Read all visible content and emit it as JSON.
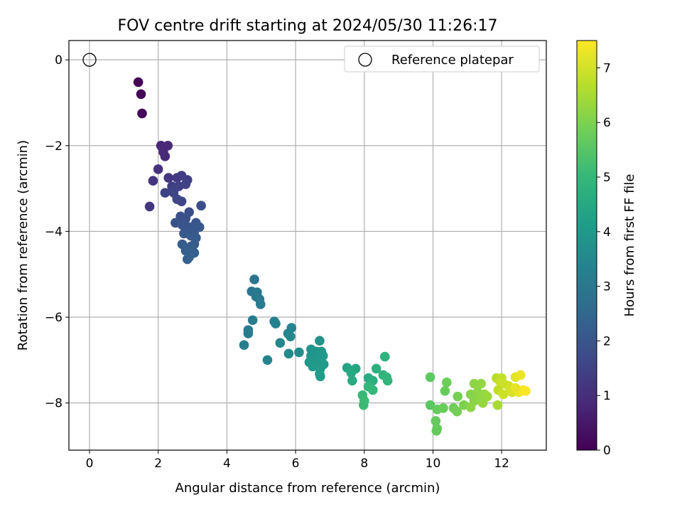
{
  "chart_data": {
    "type": "scatter",
    "title": "FOV centre drift starting at 2024/05/30 11:26:17",
    "xlabel": "Angular distance from reference (arcmin)",
    "ylabel": "Rotation from reference (arcmin)",
    "xlim": [
      -0.6,
      13.3
    ],
    "ylim": [
      -9.1,
      0.45
    ],
    "xticks": [
      0,
      2,
      4,
      6,
      8,
      10,
      12
    ],
    "yticks": [
      0,
      -2,
      -4,
      -6,
      -8
    ],
    "grid": true,
    "legend": {
      "placement": "top-right",
      "entries": [
        "Reference platepar"
      ]
    },
    "reference_point": {
      "x": 0,
      "y": 0
    },
    "colorbar": {
      "label": "Hours from first FF file",
      "range": [
        0,
        7.5
      ],
      "ticks": [
        0,
        1,
        2,
        3,
        4,
        5,
        6,
        7
      ],
      "colormap": "viridis",
      "stops": [
        "#440154",
        "#482878",
        "#3e4989",
        "#31688e",
        "#26828e",
        "#1f9e89",
        "#35b779",
        "#6ece58",
        "#b5de2b",
        "#fde725"
      ]
    },
    "points": [
      [
        1.42,
        -0.52,
        0.05
      ],
      [
        1.5,
        -0.8,
        0.1
      ],
      [
        1.53,
        -1.25,
        0.15
      ],
      [
        2.08,
        -2.0,
        0.8
      ],
      [
        2.28,
        -2.0,
        0.85
      ],
      [
        2.15,
        -2.15,
        0.9
      ],
      [
        2.2,
        -2.25,
        0.9
      ],
      [
        2.1,
        -2.02,
        0.85
      ],
      [
        2.0,
        -2.55,
        1.1
      ],
      [
        1.85,
        -2.82,
        1.15
      ],
      [
        2.3,
        -2.75,
        1.2
      ],
      [
        2.55,
        -2.75,
        1.3
      ],
      [
        2.68,
        -2.7,
        1.35
      ],
      [
        2.85,
        -2.8,
        1.4
      ],
      [
        2.4,
        -2.95,
        1.4
      ],
      [
        2.6,
        -2.95,
        1.45
      ],
      [
        2.8,
        -2.9,
        1.5
      ],
      [
        2.2,
        -3.1,
        1.5
      ],
      [
        2.45,
        -3.1,
        1.55
      ],
      [
        2.55,
        -3.25,
        1.6
      ],
      [
        2.68,
        -3.3,
        1.6
      ],
      [
        1.75,
        -3.42,
        1.2
      ],
      [
        3.25,
        -3.4,
        1.8
      ],
      [
        2.9,
        -3.55,
        1.8
      ],
      [
        2.65,
        -3.65,
        1.85
      ],
      [
        2.8,
        -3.7,
        1.9
      ],
      [
        2.5,
        -3.8,
        1.9
      ],
      [
        2.7,
        -3.85,
        1.95
      ],
      [
        2.9,
        -3.9,
        2.0
      ],
      [
        3.1,
        -3.8,
        2.0
      ],
      [
        3.2,
        -3.9,
        2.05
      ],
      [
        3.05,
        -4.0,
        2.05
      ],
      [
        2.75,
        -4.05,
        2.1
      ],
      [
        2.95,
        -4.1,
        2.1
      ],
      [
        3.1,
        -4.15,
        2.15
      ],
      [
        3.05,
        -4.3,
        2.15
      ],
      [
        2.7,
        -4.3,
        2.2
      ],
      [
        2.95,
        -4.35,
        2.2
      ],
      [
        2.8,
        -4.45,
        2.25
      ],
      [
        3.05,
        -4.5,
        2.25
      ],
      [
        2.9,
        -4.6,
        2.3
      ],
      [
        2.85,
        -4.65,
        2.3
      ],
      [
        4.8,
        -5.12,
        2.9
      ],
      [
        4.72,
        -5.4,
        2.95
      ],
      [
        4.88,
        -5.42,
        3.0
      ],
      [
        4.85,
        -5.52,
        3.0
      ],
      [
        4.95,
        -5.58,
        3.05
      ],
      [
        4.98,
        -5.7,
        3.1
      ],
      [
        4.75,
        -6.07,
        3.1
      ],
      [
        4.62,
        -6.3,
        3.15
      ],
      [
        4.62,
        -6.38,
        3.15
      ],
      [
        4.5,
        -6.65,
        3.2
      ],
      [
        5.38,
        -6.1,
        3.25
      ],
      [
        5.42,
        -6.15,
        3.3
      ],
      [
        5.88,
        -6.25,
        3.4
      ],
      [
        5.78,
        -6.38,
        3.45
      ],
      [
        5.85,
        -6.45,
        3.5
      ],
      [
        5.55,
        -6.6,
        3.45
      ],
      [
        5.18,
        -7.0,
        3.35
      ],
      [
        5.8,
        -6.85,
        3.55
      ],
      [
        6.1,
        -6.82,
        3.6
      ],
      [
        6.7,
        -6.55,
        3.8
      ],
      [
        6.45,
        -6.75,
        3.85
      ],
      [
        6.6,
        -6.8,
        3.9
      ],
      [
        6.75,
        -6.8,
        3.95
      ],
      [
        6.45,
        -6.9,
        3.9
      ],
      [
        6.55,
        -6.95,
        3.95
      ],
      [
        6.68,
        -6.98,
        4.0
      ],
      [
        6.8,
        -6.9,
        4.0
      ],
      [
        6.4,
        -7.05,
        3.95
      ],
      [
        6.6,
        -7.05,
        4.0
      ],
      [
        6.75,
        -7.05,
        4.05
      ],
      [
        6.82,
        -7.1,
        4.05
      ],
      [
        6.5,
        -7.15,
        4.05
      ],
      [
        6.72,
        -7.2,
        4.1
      ],
      [
        6.7,
        -7.32,
        4.1
      ],
      [
        6.72,
        -7.38,
        4.1
      ],
      [
        7.5,
        -7.18,
        4.4
      ],
      [
        7.75,
        -7.2,
        4.45
      ],
      [
        7.62,
        -7.3,
        4.5
      ],
      [
        7.65,
        -7.48,
        4.55
      ],
      [
        8.12,
        -7.42,
        4.6
      ],
      [
        8.25,
        -7.48,
        4.7
      ],
      [
        8.35,
        -7.2,
        4.75
      ],
      [
        8.6,
        -6.92,
        4.8
      ],
      [
        8.55,
        -7.35,
        4.85
      ],
      [
        8.65,
        -7.4,
        4.9
      ],
      [
        8.68,
        -7.48,
        4.9
      ],
      [
        8.12,
        -7.62,
        4.95
      ],
      [
        8.25,
        -7.7,
        5.0
      ],
      [
        7.95,
        -7.82,
        5.05
      ],
      [
        8.0,
        -7.95,
        5.1
      ],
      [
        7.98,
        -8.05,
        5.1
      ],
      [
        9.92,
        -7.4,
        5.6
      ],
      [
        9.92,
        -8.05,
        5.55
      ],
      [
        10.4,
        -7.52,
        5.8
      ],
      [
        10.35,
        -7.72,
        5.75
      ],
      [
        10.72,
        -7.85,
        5.9
      ],
      [
        10.12,
        -8.15,
        5.7
      ],
      [
        10.3,
        -8.12,
        5.75
      ],
      [
        10.6,
        -8.12,
        5.85
      ],
      [
        10.7,
        -8.2,
        5.9
      ],
      [
        10.9,
        -8.05,
        6.0
      ],
      [
        10.08,
        -8.42,
        5.7
      ],
      [
        10.12,
        -8.6,
        5.7
      ],
      [
        10.1,
        -8.65,
        5.7
      ],
      [
        11.2,
        -7.55,
        6.2
      ],
      [
        11.4,
        -7.55,
        6.25
      ],
      [
        11.1,
        -7.8,
        6.1
      ],
      [
        11.3,
        -7.75,
        6.2
      ],
      [
        11.5,
        -7.8,
        6.3
      ],
      [
        11.58,
        -7.85,
        6.35
      ],
      [
        11.2,
        -7.95,
        6.15
      ],
      [
        11.4,
        -7.92,
        6.25
      ],
      [
        11.45,
        -8.0,
        6.3
      ],
      [
        11.1,
        -8.1,
        6.2
      ],
      [
        11.88,
        -8.05,
        6.5
      ],
      [
        11.85,
        -7.42,
        6.7
      ],
      [
        12.0,
        -7.42,
        6.8
      ],
      [
        11.95,
        -7.5,
        6.85
      ],
      [
        12.05,
        -7.55,
        6.9
      ],
      [
        12.2,
        -7.6,
        6.95
      ],
      [
        11.9,
        -7.7,
        6.8
      ],
      [
        12.05,
        -7.8,
        6.95
      ],
      [
        12.25,
        -7.65,
        7.0
      ],
      [
        12.3,
        -7.75,
        7.05
      ],
      [
        12.4,
        -7.4,
        7.2
      ],
      [
        12.55,
        -7.35,
        7.3
      ],
      [
        12.5,
        -7.75,
        7.3
      ],
      [
        12.62,
        -7.7,
        7.4
      ],
      [
        12.7,
        -7.72,
        7.45
      ],
      [
        12.4,
        -7.65,
        7.25
      ]
    ]
  }
}
